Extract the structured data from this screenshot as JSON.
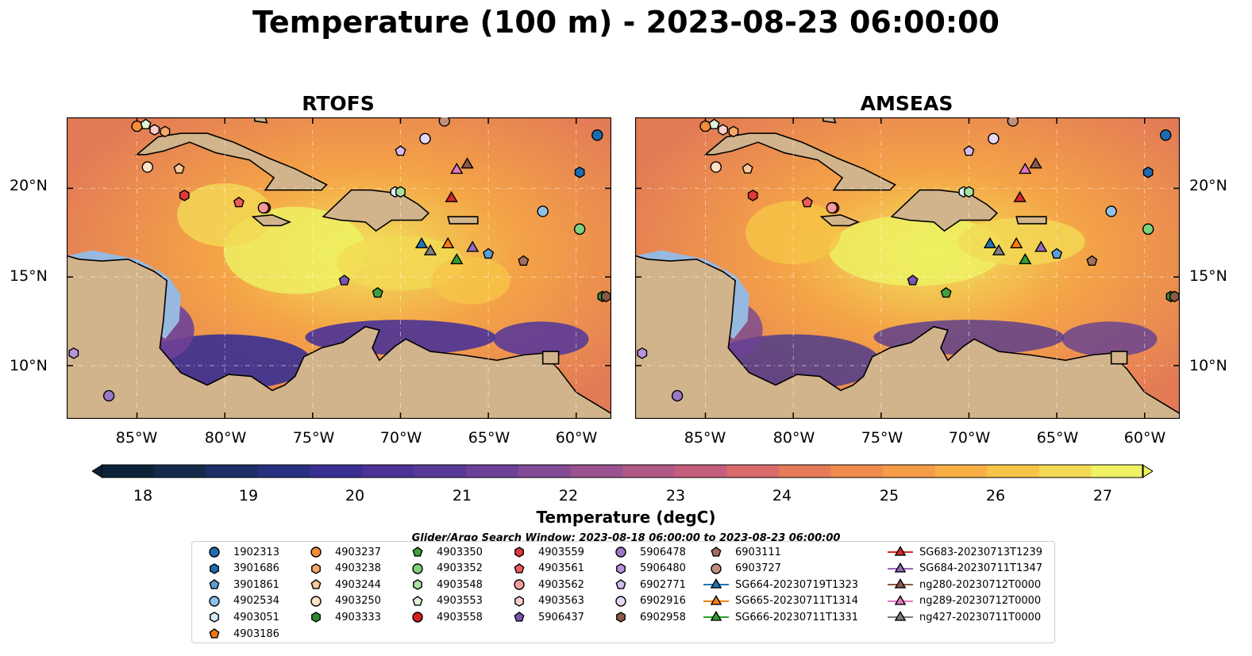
{
  "title": "Temperature (100 m) - 2023-08-23 06:00:00",
  "panels": [
    {
      "title": "RTOFS"
    },
    {
      "title": "AMSEAS"
    }
  ],
  "axes": {
    "lat_ticks": [
      "20°N",
      "15°N",
      "10°N"
    ],
    "lon_ticks": [
      "85°W",
      "80°W",
      "75°W",
      "70°W",
      "65°W",
      "60°W"
    ]
  },
  "colorbar": {
    "label": "Temperature (degC)",
    "ticks": [
      "18",
      "19",
      "20",
      "21",
      "22",
      "23",
      "24",
      "25",
      "26",
      "27"
    ],
    "colors": [
      "#0b2238",
      "#132a4b",
      "#1c2f66",
      "#283080",
      "#382f92",
      "#4a3296",
      "#5a3a98",
      "#6e4198",
      "#844b96",
      "#9a5290",
      "#b05886",
      "#c45e7c",
      "#d86a6a",
      "#e67a58",
      "#ef8b4d",
      "#f49c47",
      "#f7af45",
      "#f6c446",
      "#f3da55",
      "#eef263"
    ]
  },
  "search_window": "Glider/Argo Search Window: 2023-08-18 06:00:00 to 2023-08-23 06:00:00",
  "legend": {
    "columns": [
      [
        {
          "label": "1902313",
          "marker": "circle",
          "color": "#1f6bb0"
        },
        {
          "label": "3901686",
          "marker": "hexagon",
          "color": "#1f6bb0"
        },
        {
          "label": "3901861",
          "marker": "pentagon",
          "color": "#5a9fd4"
        },
        {
          "label": "4902534",
          "marker": "circle",
          "color": "#8fc2e8"
        },
        {
          "label": "4903051",
          "marker": "hexagon",
          "color": "#d6ecf8"
        },
        {
          "label": "4903186",
          "marker": "pentagon",
          "color": "#f07a12"
        }
      ],
      [
        {
          "label": "4903237",
          "marker": "circle",
          "color": "#f48c3a"
        },
        {
          "label": "4903238",
          "marker": "hexagon",
          "color": "#f7a868"
        },
        {
          "label": "4903244",
          "marker": "pentagon",
          "color": "#f9c89a"
        },
        {
          "label": "4903250",
          "marker": "circle",
          "color": "#fde3c4"
        },
        {
          "label": "4903333",
          "marker": "hexagon",
          "color": "#2e8a2e"
        }
      ],
      [
        {
          "label": "4903350",
          "marker": "pentagon",
          "color": "#3fa03f"
        },
        {
          "label": "4903352",
          "marker": "circle",
          "color": "#7dd07d"
        },
        {
          "label": "4903548",
          "marker": "hexagon",
          "color": "#a9e0a0"
        },
        {
          "label": "4903553",
          "marker": "pentagon",
          "color": "#e0f5d6"
        },
        {
          "label": "4903558",
          "marker": "circle",
          "color": "#d42020"
        }
      ],
      [
        {
          "label": "4903559",
          "marker": "hexagon",
          "color": "#e0393b"
        },
        {
          "label": "4903561",
          "marker": "pentagon",
          "color": "#ee5a5a"
        },
        {
          "label": "4903562",
          "marker": "circle",
          "color": "#f59a9a"
        },
        {
          "label": "4903563",
          "marker": "hexagon",
          "color": "#fbd0cc"
        },
        {
          "label": "5906437",
          "marker": "pentagon",
          "color": "#7a55b0"
        }
      ],
      [
        {
          "label": "5906478",
          "marker": "circle",
          "color": "#9a78c8"
        },
        {
          "label": "5906480",
          "marker": "hexagon",
          "color": "#b596dc"
        },
        {
          "label": "6902771",
          "marker": "pentagon",
          "color": "#d2bdee"
        },
        {
          "label": "6902916",
          "marker": "circle",
          "color": "#e6d8f5"
        },
        {
          "label": "6902958",
          "marker": "hexagon",
          "color": "#8b5a44"
        }
      ],
      [
        {
          "label": "6903111",
          "marker": "pentagon",
          "color": "#a2705c"
        },
        {
          "label": "6903727",
          "marker": "circle",
          "color": "#c0907e"
        },
        {
          "label": "SG664-20230719T1323",
          "marker": "triangle-line",
          "color": "#1f77b4"
        },
        {
          "label": "SG665-20230711T1314",
          "marker": "triangle-line",
          "color": "#ff7f0e"
        },
        {
          "label": "SG666-20230711T1331",
          "marker": "triangle-line",
          "color": "#2ca02c"
        }
      ],
      [
        {
          "label": "SG683-20230713T1239",
          "marker": "triangle-line",
          "color": "#d62728"
        },
        {
          "label": "SG684-20230711T1347",
          "marker": "triangle-line",
          "color": "#9467bd"
        },
        {
          "label": "ng280-20230712T0000",
          "marker": "triangle-line",
          "color": "#8c564b"
        },
        {
          "label": "ng289-20230712T0000",
          "marker": "triangle-line",
          "color": "#e377c2"
        },
        {
          "label": "ng427-20230711T0000",
          "marker": "triangle-line",
          "color": "#7f7f7f"
        }
      ]
    ]
  },
  "chart_data": {
    "type": "heatmap",
    "title": "Temperature (100 m) - 2023-08-23 06:00:00",
    "panels": [
      "RTOFS",
      "AMSEAS"
    ],
    "xlabel": "",
    "ylabel": "",
    "xlim": [
      -89,
      -58
    ],
    "ylim": [
      7,
      24
    ],
    "color_range": [
      18,
      27
    ],
    "colorbar_label": "Temperature (degC)",
    "observations": [
      {
        "label": "1902313",
        "lon": -58.8,
        "lat": 23.0
      },
      {
        "label": "3901686",
        "lon": -59.8,
        "lat": 20.9
      },
      {
        "label": "3901861",
        "lon": -65.0,
        "lat": 16.3
      },
      {
        "label": "4902534",
        "lon": -61.9,
        "lat": 18.7
      },
      {
        "label": "4903051",
        "lon": -70.3,
        "lat": 19.8
      },
      {
        "label": "4903237",
        "lon": -85.0,
        "lat": 23.5
      },
      {
        "label": "4903238",
        "lon": -83.4,
        "lat": 23.2
      },
      {
        "label": "4903244",
        "lon": -82.6,
        "lat": 21.1
      },
      {
        "label": "4903250",
        "lon": -84.4,
        "lat": 21.2
      },
      {
        "label": "4903333",
        "lon": -58.5,
        "lat": 13.9
      },
      {
        "label": "4903350",
        "lon": -71.3,
        "lat": 14.1
      },
      {
        "label": "4903352",
        "lon": -59.8,
        "lat": 17.7
      },
      {
        "label": "4903548",
        "lon": -70.0,
        "lat": 19.8
      },
      {
        "label": "4903553",
        "lon": -84.5,
        "lat": 23.6
      },
      {
        "label": "4903558",
        "lon": -77.7,
        "lat": 18.9
      },
      {
        "label": "4903559",
        "lon": -82.3,
        "lat": 19.6
      },
      {
        "label": "4903561",
        "lon": -79.2,
        "lat": 19.2
      },
      {
        "label": "4903562",
        "lon": -77.8,
        "lat": 18.9
      },
      {
        "label": "4903563",
        "lon": -84.0,
        "lat": 23.3
      },
      {
        "label": "5906437",
        "lon": -73.2,
        "lat": 14.8
      },
      {
        "label": "5906478",
        "lon": -86.6,
        "lat": 8.3
      },
      {
        "label": "5906480",
        "lon": -88.6,
        "lat": 10.7
      },
      {
        "label": "6902771",
        "lon": -70.0,
        "lat": 22.1
      },
      {
        "label": "6902916",
        "lon": -68.6,
        "lat": 22.8
      },
      {
        "label": "6902958",
        "lon": -58.3,
        "lat": 13.9
      },
      {
        "label": "6903111",
        "lon": -63.0,
        "lat": 15.9
      },
      {
        "label": "6903727",
        "lon": -67.5,
        "lat": 23.8
      },
      {
        "label": "SG664-20230719T1323",
        "lon": -68.8,
        "lat": 16.9
      },
      {
        "label": "SG665-20230711T1314",
        "lon": -67.3,
        "lat": 16.9
      },
      {
        "label": "SG666-20230711T1331",
        "lon": -66.8,
        "lat": 16.0
      },
      {
        "label": "SG683-20230713T1239",
        "lon": -67.1,
        "lat": 19.5
      },
      {
        "label": "SG684-20230711T1347",
        "lon": -65.9,
        "lat": 16.7
      },
      {
        "label": "ng280-20230712T0000",
        "lon": -66.2,
        "lat": 21.4
      },
      {
        "label": "ng289-20230712T0000",
        "lon": -66.8,
        "lat": 21.1
      },
      {
        "label": "ng427-20230711T0000",
        "lon": -68.3,
        "lat": 16.5
      }
    ]
  }
}
